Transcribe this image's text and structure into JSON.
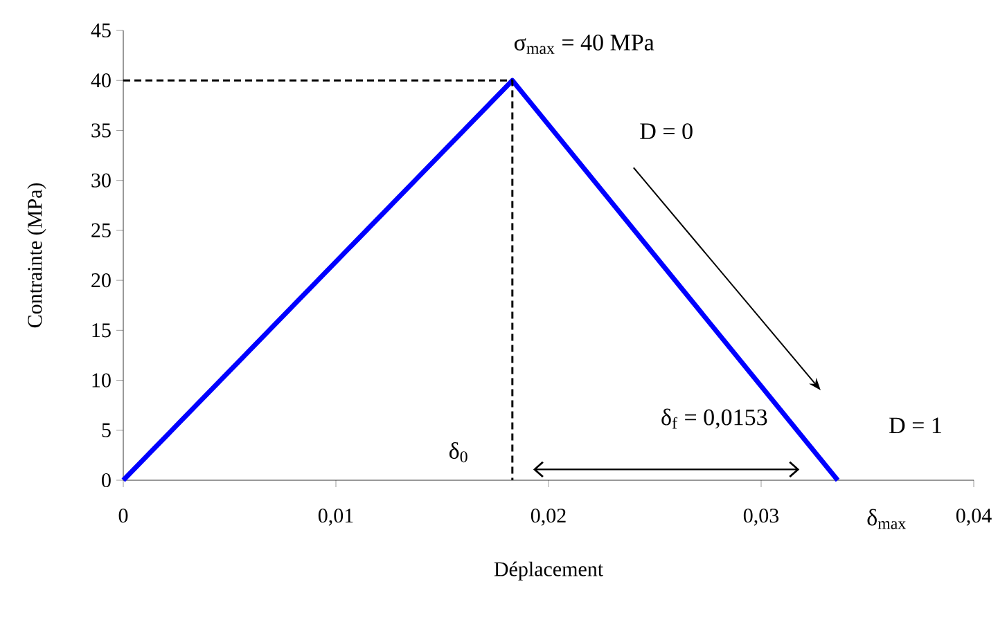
{
  "chart_data": {
    "type": "line",
    "xlabel": "Déplacement",
    "ylabel": "Contrainte (MPa)",
    "xlim": [
      0,
      0.04
    ],
    "ylim": [
      0,
      45
    ],
    "xticks": [
      0,
      {
        "value": 0.01,
        "label": "0,01"
      },
      {
        "value": 0.02,
        "label": "0,02"
      },
      {
        "value": 0.03,
        "label": "0,03"
      },
      {
        "value": 0.04,
        "label": "0,04"
      }
    ],
    "yticks": [
      0,
      5,
      10,
      15,
      20,
      25,
      30,
      35,
      40,
      45
    ],
    "grid": false,
    "marker": "none",
    "series": [
      {
        "x": [
          0,
          0.0183,
          0.0336
        ],
        "values": [
          0,
          40,
          0
        ],
        "color": "#0000ff",
        "line_style": "solid"
      },
      {
        "x": [
          0,
          0.0183,
          0.0183
        ],
        "values": [
          40,
          40,
          0
        ],
        "color": "#000000",
        "line_style": "dashed"
      }
    ],
    "annotations": [
      "σ$_{max}$ = 40 MPa",
      "D = 0",
      "D = 1",
      "δ$_{f}$ = 0,0153",
      "δ$_{0}$",
      "δ$_{max}$"
    ]
  }
}
